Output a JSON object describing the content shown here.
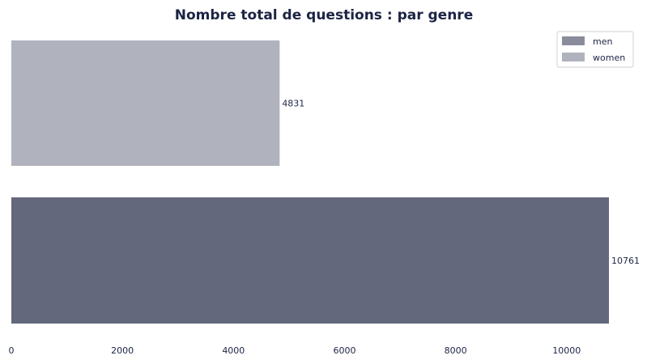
{
  "chart_data": {
    "type": "bar",
    "orientation": "horizontal",
    "title": "Nombre total de questions : par genre",
    "xlabel": "",
    "ylabel": "",
    "xlim": [
      0,
      10761
    ],
    "xticks": [
      0,
      2000,
      4000,
      6000,
      8000,
      10000
    ],
    "grid": false,
    "legend_position": "top-right",
    "series": [
      {
        "name": "men",
        "value": 10761,
        "label": "10761",
        "color": "#63687c"
      },
      {
        "name": "women",
        "value": 4831,
        "label": "4831",
        "color": "#b0b2bd"
      }
    ],
    "legend": [
      {
        "label": "men",
        "color": "#8a8c9c"
      },
      {
        "label": "women",
        "color": "#b0b2bd"
      }
    ],
    "text_color": "#1c2445"
  }
}
